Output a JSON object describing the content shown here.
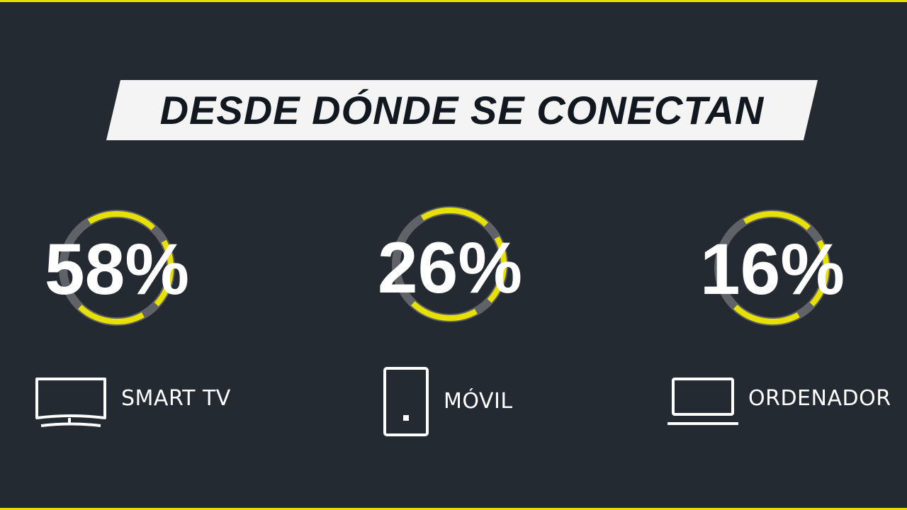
{
  "colors": {
    "background": "#242a31",
    "accent": "#e8e100",
    "ring_track": "#5f6368",
    "banner": "#f4f4f4",
    "text": "#ffffff"
  },
  "chart_data": {
    "type": "pie",
    "title": "DESDE DÓNDE SE CONECTAN",
    "items": [
      {
        "label": "SMART TV",
        "value": 58,
        "display": "58%",
        "icon": "tv-icon"
      },
      {
        "label": "MÓVIL",
        "value": 26,
        "display": "26%",
        "icon": "phone-icon"
      },
      {
        "label": "ORDENADOR",
        "value": 16,
        "display": "16%",
        "icon": "laptop-icon"
      }
    ]
  }
}
